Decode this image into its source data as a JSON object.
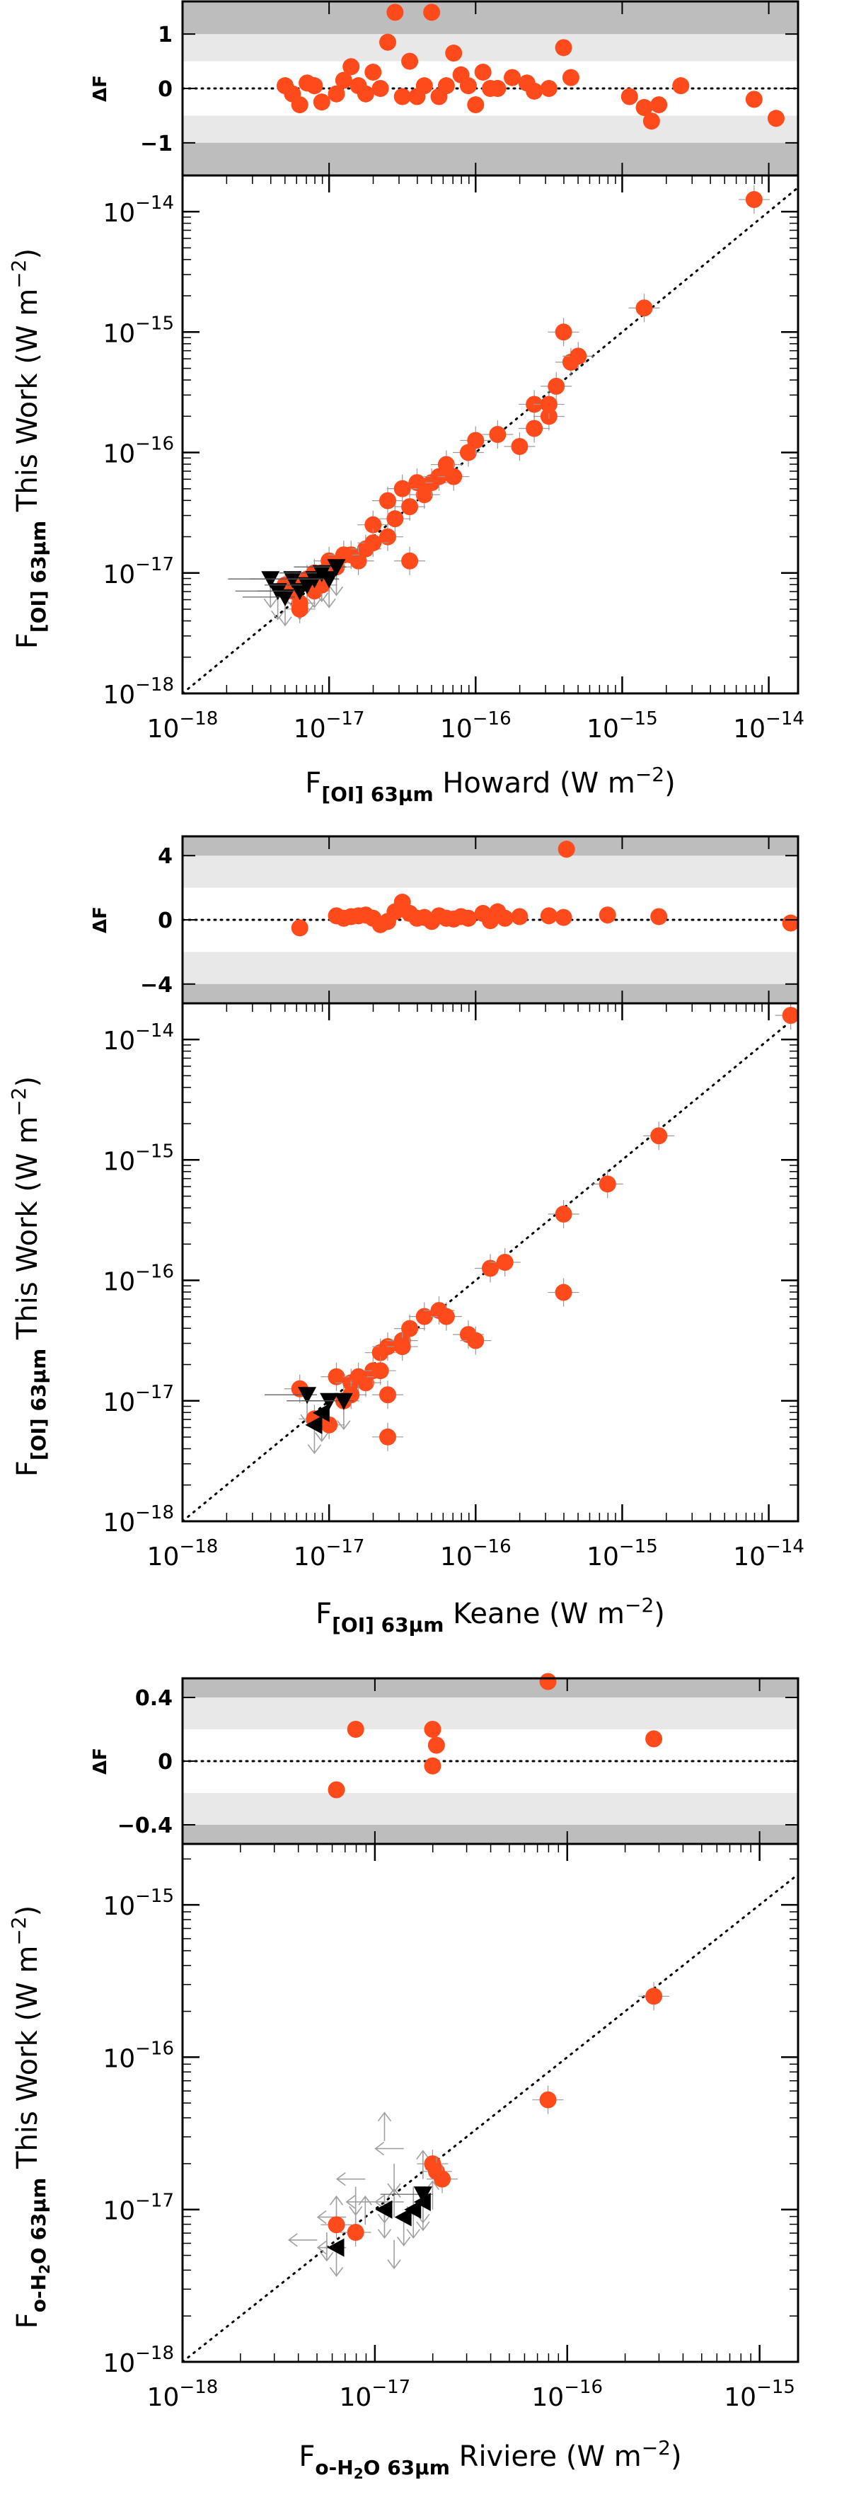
{
  "chart_data": [
    {
      "type": "scatter",
      "id": "howard",
      "ylabel": "F[OI] 63μm This Work (W m−2)",
      "xlabel": "F[OI] 63μm Howard (W m−2)",
      "ylabel_parts": {
        "sym": "F",
        "sub": "[OI] 63μm",
        "rest": " This Work (W m",
        "unit_sup": "−2",
        "close": ")"
      },
      "xlabel_parts": {
        "sym": "F",
        "sub": "[OI] 63μm",
        "rest": " Howard (W m",
        "unit_sup": "−2",
        "close": ")"
      },
      "xlim_log": [
        -18,
        -13.8
      ],
      "ylim_log": [
        -18,
        -13.7
      ],
      "x_ticks": [
        {
          "exp": -18,
          "base": "10",
          "sup": "−18"
        },
        {
          "exp": -17,
          "base": "10",
          "sup": "−17"
        },
        {
          "exp": -16,
          "base": "10",
          "sup": "−16"
        },
        {
          "exp": -15,
          "base": "10",
          "sup": "−15"
        },
        {
          "exp": -14,
          "base": "10",
          "sup": "−14"
        }
      ],
      "y_ticks": [
        {
          "exp": -18,
          "base": "10",
          "sup": "−18"
        },
        {
          "exp": -17,
          "base": "10",
          "sup": "−17"
        },
        {
          "exp": -16,
          "base": "10",
          "sup": "−16"
        },
        {
          "exp": -15,
          "base": "10",
          "sup": "−15"
        },
        {
          "exp": -14,
          "base": "10",
          "sup": "−14"
        }
      ],
      "reference_line": "1:1 dotted",
      "detections": [
        [
          -17.2,
          -17.25
        ],
        [
          -17.15,
          -17.05
        ],
        [
          -17.25,
          -17.15
        ],
        [
          -17.05,
          -17.0
        ],
        [
          -16.95,
          -16.95
        ],
        [
          -16.85,
          -16.85
        ],
        [
          -16.75,
          -16.8
        ],
        [
          -16.6,
          -16.7
        ],
        [
          -16.55,
          -16.55
        ],
        [
          -16.45,
          -16.45
        ],
        [
          -16.35,
          -16.35
        ],
        [
          -16.3,
          -16.25
        ],
        [
          -16.25,
          -16.2
        ],
        [
          -16.2,
          -16.1
        ],
        [
          -16.15,
          -16.2
        ],
        [
          -16.05,
          -16.0
        ],
        [
          -16.0,
          -15.9
        ],
        [
          -16.4,
          -16.25
        ],
        [
          -16.5,
          -16.3
        ],
        [
          -16.7,
          -16.6
        ],
        [
          -16.8,
          -16.9
        ],
        [
          -17.0,
          -16.9
        ],
        [
          -17.1,
          -17.0
        ],
        [
          -17.3,
          -17.1
        ],
        [
          -16.9,
          -16.85
        ],
        [
          -16.6,
          -16.4
        ],
        [
          -15.85,
          -15.85
        ],
        [
          -15.7,
          -15.95
        ],
        [
          -15.6,
          -15.8
        ],
        [
          -15.5,
          -15.7
        ],
        [
          -15.6,
          -15.6
        ],
        [
          -15.45,
          -15.45
        ],
        [
          -15.4,
          -15.0
        ],
        [
          -15.35,
          -15.25
        ],
        [
          -15.3,
          -15.2
        ],
        [
          -15.5,
          -15.6
        ],
        [
          -14.85,
          -14.8
        ],
        [
          -14.1,
          -13.9
        ],
        [
          -17.2,
          -17.3
        ],
        [
          -16.45,
          -16.9
        ],
        [
          -17.1,
          -17.15
        ],
        [
          -17.2,
          -17.1
        ],
        [
          -16.7,
          -16.75
        ],
        [
          -17.05,
          -17.1
        ]
      ],
      "upper_limits": [
        [
          -17.4,
          -17.05
        ],
        [
          -17.35,
          -17.15
        ],
        [
          -17.3,
          -17.2
        ],
        [
          -17.25,
          -17.05
        ],
        [
          -17.2,
          -17.15
        ],
        [
          -17.15,
          -17.1
        ],
        [
          -17.1,
          -17.05
        ],
        [
          -17.05,
          -17.0
        ],
        [
          -17.0,
          -17.05
        ],
        [
          -16.95,
          -16.95
        ]
      ],
      "residuals": {
        "ylim": [
          -1.6,
          1.6
        ],
        "ticks": [
          {
            "v": 1,
            "label": "1"
          },
          {
            "v": 0,
            "label": "0"
          },
          {
            "v": -1,
            "label": "−1"
          }
        ],
        "band_inner": 0.5,
        "band_outer": 1.0,
        "ylabel": "ΔF",
        "points": [
          [
            -17.3,
            0.05
          ],
          [
            -17.25,
            -0.1
          ],
          [
            -17.2,
            -0.3
          ],
          [
            -17.15,
            0.1
          ],
          [
            -17.1,
            0.05
          ],
          [
            -17.05,
            -0.25
          ],
          [
            -16.95,
            -0.1
          ],
          [
            -16.9,
            0.15
          ],
          [
            -16.85,
            0.4
          ],
          [
            -16.8,
            0.05
          ],
          [
            -16.75,
            -0.1
          ],
          [
            -16.7,
            0.3
          ],
          [
            -16.65,
            0.0
          ],
          [
            -16.6,
            0.85
          ],
          [
            -16.55,
            1.4
          ],
          [
            -16.5,
            -0.15
          ],
          [
            -16.45,
            0.5
          ],
          [
            -16.4,
            -0.15
          ],
          [
            -16.35,
            0.05
          ],
          [
            -16.3,
            1.4
          ],
          [
            -16.25,
            -0.15
          ],
          [
            -16.2,
            0.05
          ],
          [
            -16.15,
            0.65
          ],
          [
            -16.1,
            0.25
          ],
          [
            -16.05,
            0.05
          ],
          [
            -16.0,
            -0.3
          ],
          [
            -15.95,
            0.3
          ],
          [
            -15.9,
            0.0
          ],
          [
            -15.85,
            0.0
          ],
          [
            -15.75,
            0.2
          ],
          [
            -15.65,
            0.1
          ],
          [
            -15.6,
            -0.05
          ],
          [
            -15.5,
            0.0
          ],
          [
            -15.4,
            0.75
          ],
          [
            -15.35,
            0.2
          ],
          [
            -14.95,
            -0.15
          ],
          [
            -14.85,
            -0.35
          ],
          [
            -14.8,
            -0.6
          ],
          [
            -14.75,
            -0.3
          ],
          [
            -14.6,
            0.05
          ],
          [
            -14.1,
            -0.2
          ],
          [
            -13.95,
            -0.55
          ]
        ]
      }
    },
    {
      "type": "scatter",
      "id": "keane",
      "ylabel": "F[OI] 63μm This Work (W m−2)",
      "xlabel": "F[OI] 63μm Keane (W m−2)",
      "ylabel_parts": {
        "sym": "F",
        "sub": "[OI] 63μm",
        "rest": " This Work (W m",
        "unit_sup": "−2",
        "close": ")"
      },
      "xlabel_parts": {
        "sym": "F",
        "sub": "[OI] 63μm",
        "rest": " Keane (W m",
        "unit_sup": "−2",
        "close": ")"
      },
      "xlim_log": [
        -18,
        -13.8
      ],
      "ylim_log": [
        -18,
        -13.7
      ],
      "x_ticks": [
        {
          "exp": -18,
          "base": "10",
          "sup": "−18"
        },
        {
          "exp": -17,
          "base": "10",
          "sup": "−17"
        },
        {
          "exp": -16,
          "base": "10",
          "sup": "−16"
        },
        {
          "exp": -15,
          "base": "10",
          "sup": "−15"
        },
        {
          "exp": -14,
          "base": "10",
          "sup": "−14"
        }
      ],
      "y_ticks": [
        {
          "exp": -18,
          "base": "10",
          "sup": "−18"
        },
        {
          "exp": -17,
          "base": "10",
          "sup": "−17"
        },
        {
          "exp": -16,
          "base": "10",
          "sup": "−16"
        },
        {
          "exp": -15,
          "base": "10",
          "sup": "−15"
        },
        {
          "exp": -14,
          "base": "10",
          "sup": "−14"
        }
      ],
      "reference_line": "1:1 dotted",
      "detections": [
        [
          -17.2,
          -16.9
        ],
        [
          -16.95,
          -16.8
        ],
        [
          -16.85,
          -16.85
        ],
        [
          -16.75,
          -16.85
        ],
        [
          -16.7,
          -16.75
        ],
        [
          -16.65,
          -16.6
        ],
        [
          -16.6,
          -16.55
        ],
        [
          -16.5,
          -16.5
        ],
        [
          -16.45,
          -16.4
        ],
        [
          -16.35,
          -16.3
        ],
        [
          -16.25,
          -16.25
        ],
        [
          -16.2,
          -16.3
        ],
        [
          -16.05,
          -16.45
        ],
        [
          -16.0,
          -16.5
        ],
        [
          -15.9,
          -15.9
        ],
        [
          -15.8,
          -15.85
        ],
        [
          -15.4,
          -15.45
        ],
        [
          -15.4,
          -16.1
        ],
        [
          -15.1,
          -15.2
        ],
        [
          -14.75,
          -14.8
        ],
        [
          -13.85,
          -13.8
        ],
        [
          -16.6,
          -16.95
        ],
        [
          -16.6,
          -17.3
        ],
        [
          -16.8,
          -16.8
        ],
        [
          -16.65,
          -16.75
        ],
        [
          -16.9,
          -17.0
        ],
        [
          -16.85,
          -16.95
        ],
        [
          -17.0,
          -17.2
        ],
        [
          -17.1,
          -17.15
        ],
        [
          -16.5,
          -16.55
        ]
      ],
      "upper_limits": [
        [
          -17.15,
          -16.95
        ],
        [
          -17.0,
          -17.0
        ],
        [
          -16.9,
          -17.0
        ]
      ],
      "left_limits": [
        [
          -17.1,
          -17.2
        ],
        [
          -17.05,
          -17.1
        ]
      ],
      "residuals": {
        "ylim": [
          -5.2,
          5.2
        ],
        "ticks": [
          {
            "v": 4,
            "label": "4"
          },
          {
            "v": 0,
            "label": "0"
          },
          {
            "v": -4,
            "label": "−4"
          }
        ],
        "band_inner": 2.0,
        "band_outer": 4.0,
        "ylabel": "ΔF",
        "points": [
          [
            -17.2,
            -0.5
          ],
          [
            -16.95,
            0.25
          ],
          [
            -16.9,
            0.1
          ],
          [
            -16.85,
            0.2
          ],
          [
            -16.8,
            0.25
          ],
          [
            -16.75,
            0.3
          ],
          [
            -16.7,
            0.1
          ],
          [
            -16.65,
            -0.3
          ],
          [
            -16.6,
            -0.1
          ],
          [
            -16.55,
            0.5
          ],
          [
            -16.5,
            1.1
          ],
          [
            -16.45,
            0.4
          ],
          [
            -16.4,
            0.1
          ],
          [
            -16.35,
            0.15
          ],
          [
            -16.3,
            -0.1
          ],
          [
            -16.25,
            0.25
          ],
          [
            -16.2,
            0.1
          ],
          [
            -16.15,
            0.05
          ],
          [
            -16.1,
            0.2
          ],
          [
            -16.05,
            0.1
          ],
          [
            -15.95,
            0.4
          ],
          [
            -15.9,
            -0.05
          ],
          [
            -15.85,
            0.5
          ],
          [
            -15.8,
            0.1
          ],
          [
            -15.7,
            0.2
          ],
          [
            -15.5,
            0.25
          ],
          [
            -15.4,
            0.15
          ],
          [
            -15.38,
            4.4
          ],
          [
            -15.1,
            0.3
          ],
          [
            -14.75,
            0.2
          ],
          [
            -13.85,
            -0.2
          ]
        ]
      }
    },
    {
      "type": "scatter",
      "id": "riviere",
      "ylabel": "Fo-H2O 63μm This Work (W m−2)",
      "xlabel": "Fo-H2O 63μm Riviere (W m−2)",
      "ylabel_parts": {
        "sym": "F",
        "sub": "o-H",
        "sub2": "2",
        "sub3": "O 63μm",
        "rest": " This Work (W m",
        "unit_sup": "−2",
        "close": ")"
      },
      "xlabel_parts": {
        "sym": "F",
        "sub": "o-H",
        "sub2": "2",
        "sub3": "O 63μm",
        "rest": " Riviere (W m",
        "unit_sup": "−2",
        "close": ")"
      },
      "xlim_log": [
        -18,
        -14.8
      ],
      "ylim_log": [
        -18,
        -14.6
      ],
      "x_ticks": [
        {
          "exp": -18,
          "base": "10",
          "sup": "−18"
        },
        {
          "exp": -17,
          "base": "10",
          "sup": "−17"
        },
        {
          "exp": -16,
          "base": "10",
          "sup": "−16"
        },
        {
          "exp": -15,
          "base": "10",
          "sup": "−15"
        }
      ],
      "y_ticks": [
        {
          "exp": -18,
          "base": "10",
          "sup": "−18"
        },
        {
          "exp": -17,
          "base": "10",
          "sup": "−17"
        },
        {
          "exp": -16,
          "base": "10",
          "sup": "−16"
        },
        {
          "exp": -15,
          "base": "10",
          "sup": "−15"
        }
      ],
      "reference_line": "1:1 dotted",
      "detections": [
        [
          -17.2,
          -17.1
        ],
        [
          -17.1,
          -17.15
        ],
        [
          -16.7,
          -16.7
        ],
        [
          -16.68,
          -16.75
        ],
        [
          -16.65,
          -16.8
        ],
        [
          -16.1,
          -16.28
        ],
        [
          -15.55,
          -15.6
        ]
      ],
      "upper_limits": [
        [
          -16.75,
          -16.9
        ]
      ],
      "left_limits": [
        [
          -17.2,
          -17.25
        ],
        [
          -16.95,
          -17.0
        ],
        [
          -16.85,
          -17.05
        ],
        [
          -16.8,
          -17.0
        ],
        [
          -16.75,
          -16.95
        ]
      ],
      "limit_arrows": [
        [
          -17.3,
          -17.2
        ],
        [
          -17.25,
          -17.15
        ],
        [
          -17.2,
          -17.1
        ],
        [
          -17.15,
          -17.05
        ],
        [
          -17.1,
          -17.0
        ],
        [
          -17.05,
          -17.1
        ],
        [
          -17.0,
          -16.95
        ],
        [
          -16.95,
          -16.9
        ],
        [
          -16.9,
          -17.05
        ],
        [
          -16.85,
          -16.95
        ],
        [
          -16.8,
          -16.85
        ],
        [
          -16.75,
          -16.8
        ],
        [
          -17.05,
          -16.8
        ],
        [
          -16.9,
          -16.7
        ],
        [
          -16.95,
          -16.55
        ],
        [
          -16.85,
          -16.6
        ],
        [
          -17.1,
          -16.85
        ],
        [
          -16.7,
          -17.0
        ],
        [
          -17.15,
          -17.25
        ],
        [
          -16.9,
          -17.2
        ]
      ],
      "residuals": {
        "ylim": [
          -0.52,
          0.52
        ],
        "ticks": [
          {
            "v": 0.4,
            "label": "0.4"
          },
          {
            "v": 0,
            "label": "0"
          },
          {
            "v": -0.4,
            "label": "−0.4"
          }
        ],
        "band_inner": 0.2,
        "band_outer": 0.4,
        "ylabel": "ΔF",
        "points": [
          [
            -17.2,
            -0.18
          ],
          [
            -17.1,
            0.2
          ],
          [
            -16.7,
            0.2
          ],
          [
            -16.68,
            0.1
          ],
          [
            -16.7,
            -0.03
          ],
          [
            -16.1,
            0.5
          ],
          [
            -15.55,
            0.14
          ]
        ]
      }
    }
  ],
  "colors": {
    "detection": "#ff4a1c",
    "limit": "#000000",
    "arrow": "#a0a0a0",
    "band_inner": "#e8e8e8",
    "band_outer": "#bdbdbd",
    "axis": "#000000"
  }
}
